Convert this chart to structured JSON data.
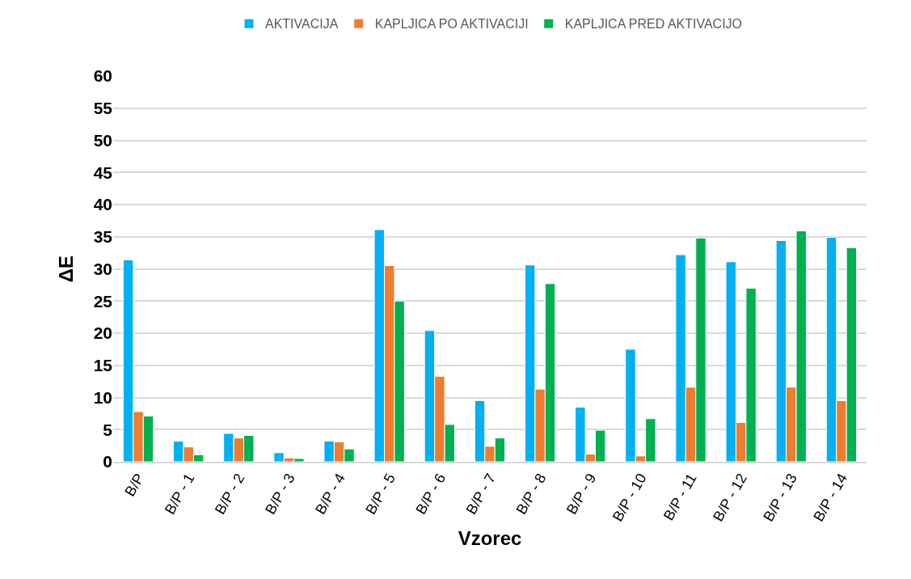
{
  "chart_data": {
    "type": "bar",
    "xlabel": "Vzorec",
    "ylabel": "ΔE",
    "categories": [
      "B/P",
      "B/P - 1",
      "B/P - 2",
      "B/P - 3",
      "B/P - 4",
      "B/P - 5",
      "B/P - 6",
      "B/P - 7",
      "B/P - 8",
      "B/P - 9",
      "B/P - 10",
      "B/P - 11",
      "B/P - 12",
      "B/P - 13",
      "B/P - 14"
    ],
    "series": [
      {
        "name": "AKTIVACIJA",
        "color": "#00b0f0",
        "values": [
          31.4,
          3.2,
          4.4,
          1.4,
          3.2,
          36.1,
          20.4,
          9.5,
          30.6,
          8.5,
          17.5,
          32.2,
          31.1,
          34.4,
          34.9
        ]
      },
      {
        "name": "KAPLJICA PO AKTIVACIJI",
        "color": "#ed7d31",
        "values": [
          7.8,
          2.3,
          3.7,
          0.6,
          3.1,
          30.5,
          13.3,
          2.4,
          11.3,
          1.2,
          0.9,
          11.6,
          6.1,
          11.6,
          9.5
        ]
      },
      {
        "name": "KAPLJICA PRED AKTIVACIJO",
        "color": "#00b050",
        "values": [
          7.1,
          1.1,
          4.1,
          0.5,
          2.0,
          25.0,
          5.8,
          3.7,
          27.7,
          4.9,
          6.7,
          34.8,
          27.0,
          35.9,
          33.3
        ]
      }
    ],
    "ylim": [
      0,
      60
    ],
    "yticks": [
      0,
      5,
      10,
      15,
      20,
      25,
      30,
      35,
      40,
      45,
      50,
      55,
      60
    ],
    "grid": "y",
    "legend": "top"
  }
}
